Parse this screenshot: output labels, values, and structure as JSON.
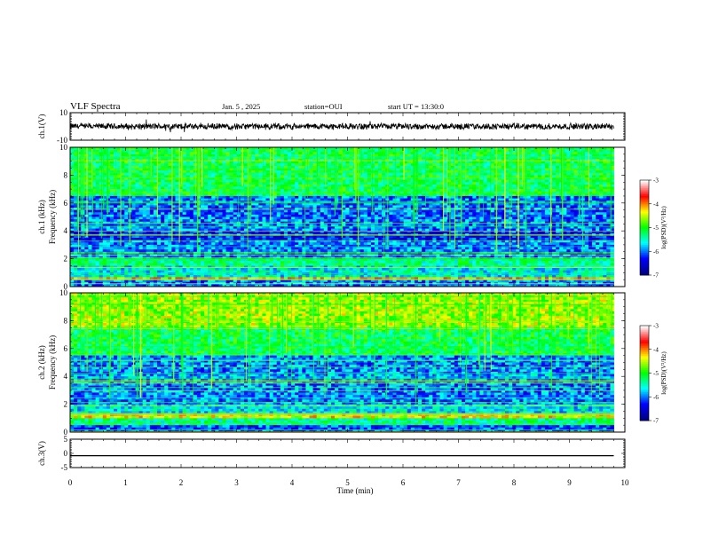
{
  "header": {
    "title": "VLF Spectra",
    "date": "Jan. 5 , 2025",
    "station": "station=OUI",
    "start": "start UT = 13:30:0"
  },
  "chart_data": [
    {
      "type": "line",
      "panel": "ch1-waveform",
      "ylabel": "ch.1(V)",
      "ylim": [
        -10,
        10
      ],
      "y_ticks": [
        "10",
        "-10"
      ],
      "x_range": [
        0,
        9.8
      ],
      "baseline": 0,
      "amplitude": 2,
      "color": "#000000"
    },
    {
      "type": "heatmap",
      "panel": "ch1-spectrogram",
      "ylabel": "ch.1 Frequency (kHz)",
      "ylim": [
        0,
        10
      ],
      "y_ticks": [
        "0",
        "2",
        "4",
        "6",
        "8",
        "10"
      ],
      "x_range": [
        0,
        9.8
      ],
      "colorbar": {
        "label": "log(PSD)(V²/Hz)",
        "range": [
          -7,
          -3
        ],
        "ticks": [
          "-3",
          "-4",
          "-5",
          "-6",
          "-7"
        ],
        "colors": [
          "#000080",
          "#0000ff",
          "#00ffff",
          "#00ff00",
          "#ffff00",
          "#ff0000",
          "#ffffff"
        ]
      },
      "bands": [
        {
          "f": [
            0,
            0.5
          ],
          "level": 0.3
        },
        {
          "f": [
            0.5,
            0.7
          ],
          "level": 0.85
        },
        {
          "f": [
            0.7,
            1.5
          ],
          "level": 0.42
        },
        {
          "f": [
            1.5,
            2.0
          ],
          "level": 0.5
        },
        {
          "f": [
            2.0,
            3.3
          ],
          "level": 0.3
        },
        {
          "f": [
            3.3,
            4.0
          ],
          "level": 0.22
        },
        {
          "f": [
            4.0,
            4.8
          ],
          "level": 0.3
        },
        {
          "f": [
            4.8,
            6.5
          ],
          "level": 0.28
        },
        {
          "f": [
            6.5,
            10
          ],
          "level": 0.55
        }
      ]
    },
    {
      "type": "heatmap",
      "panel": "ch2-spectrogram",
      "ylabel": "ch.2 Frequency (kHz)",
      "ylim": [
        0,
        10
      ],
      "y_ticks": [
        "0",
        "2",
        "4",
        "6",
        "8",
        "10"
      ],
      "x_range": [
        0,
        9.8
      ],
      "colorbar": {
        "label": "log(PSD)(V²/Hz)",
        "range": [
          -7,
          -3
        ],
        "ticks": [
          "-3",
          "-4",
          "-5",
          "-6",
          "-7"
        ],
        "colors": [
          "#000080",
          "#0000ff",
          "#00ffff",
          "#00ff00",
          "#ffff00",
          "#ff0000",
          "#ffffff"
        ]
      },
      "bands": [
        {
          "f": [
            0,
            0.5
          ],
          "level": 0.25
        },
        {
          "f": [
            0.5,
            1.0
          ],
          "level": 0.5
        },
        {
          "f": [
            1.0,
            1.3
          ],
          "level": 0.8
        },
        {
          "f": [
            1.3,
            2.0
          ],
          "level": 0.4
        },
        {
          "f": [
            2.0,
            3.8
          ],
          "level": 0.3
        },
        {
          "f": [
            3.8,
            4.2
          ],
          "level": 0.35
        },
        {
          "f": [
            4.2,
            5.5
          ],
          "level": 0.3
        },
        {
          "f": [
            5.5,
            7.5
          ],
          "level": 0.55
        },
        {
          "f": [
            7.5,
            10
          ],
          "level": 0.72
        }
      ]
    },
    {
      "type": "line",
      "panel": "ch3-waveform",
      "ylabel": "ch.3(V)",
      "ylim": [
        -5,
        5
      ],
      "y_ticks": [
        "5",
        "0",
        "-5"
      ],
      "x_range": [
        0,
        9.8
      ],
      "baseline": -0.8,
      "amplitude": 0,
      "color": "#000000"
    }
  ],
  "x_axis": {
    "label": "Time (min)",
    "range": [
      0,
      10
    ],
    "ticks": [
      "0",
      "1",
      "2",
      "3",
      "4",
      "5",
      "6",
      "7",
      "8",
      "9",
      "10"
    ]
  }
}
